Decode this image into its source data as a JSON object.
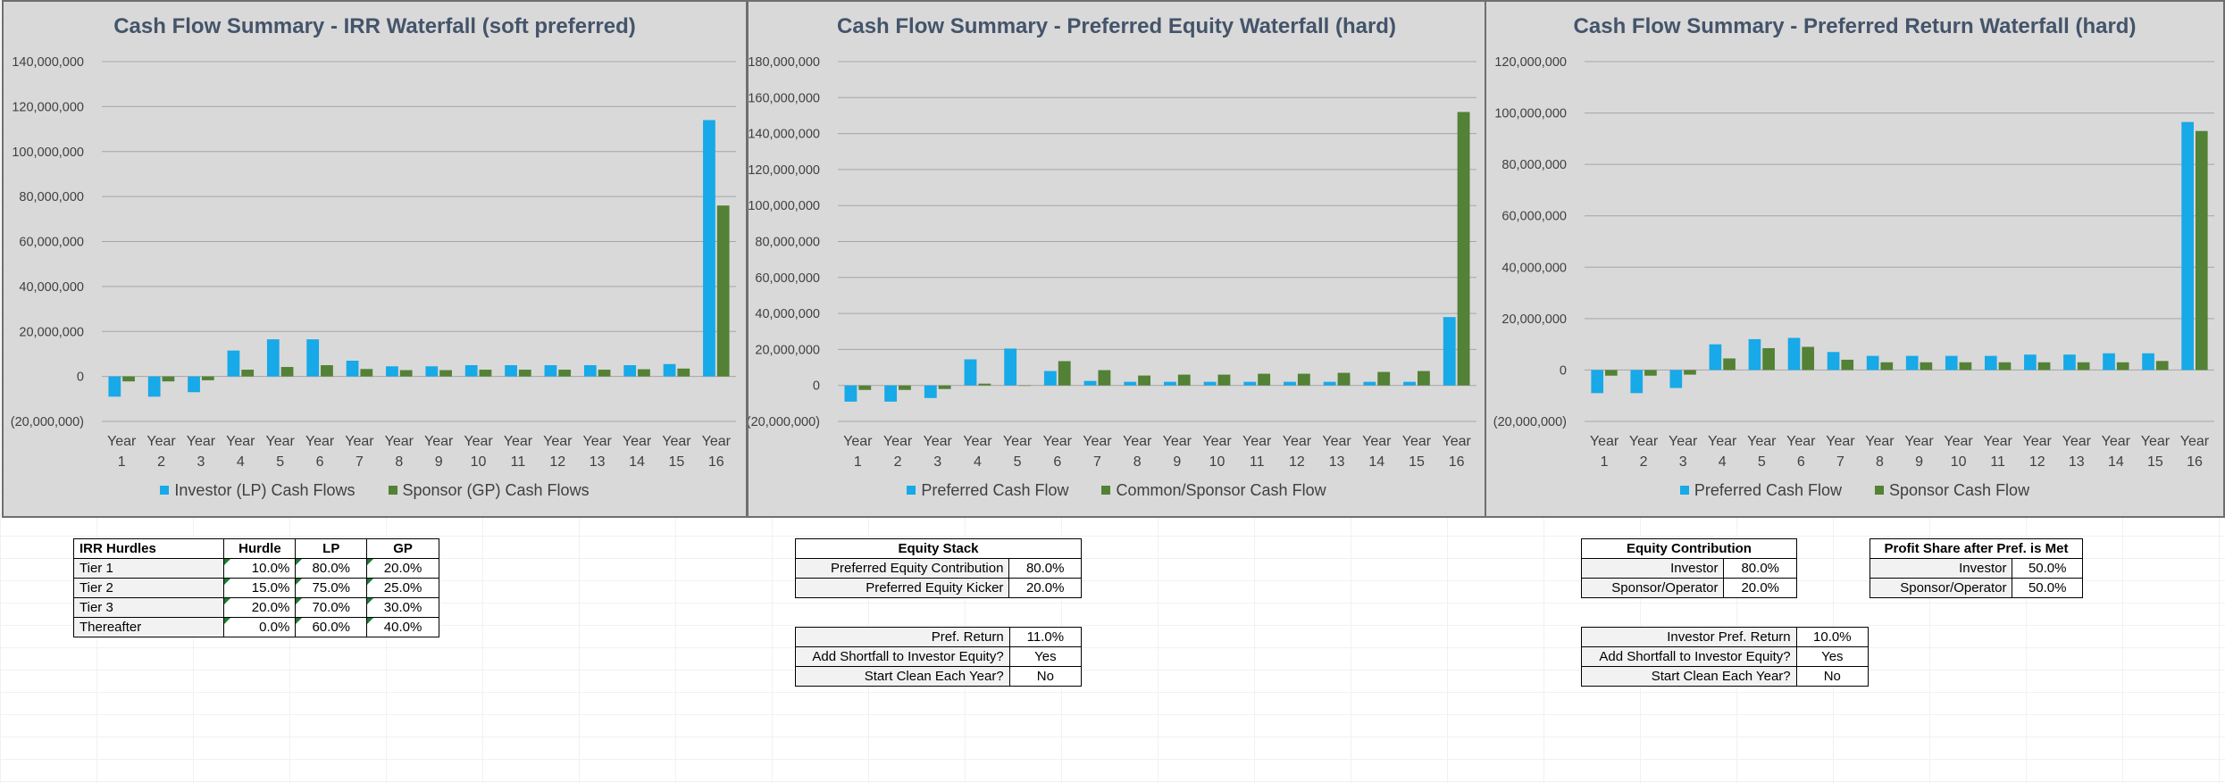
{
  "colors": {
    "blue": "#17a9e8",
    "green": "#538135",
    "chart_bg": "#d9d9d9",
    "title": "#44546a"
  },
  "chart_data": [
    {
      "type": "bar",
      "title": "Cash Flow Summary - IRR Waterfall (soft preferred)",
      "categories": [
        "Year 1",
        "Year 2",
        "Year 3",
        "Year 4",
        "Year 5",
        "Year 6",
        "Year 7",
        "Year 8",
        "Year 9",
        "Year 10",
        "Year 11",
        "Year 12",
        "Year 13",
        "Year 14",
        "Year 15",
        "Year 16"
      ],
      "yticks": [
        "140,000,000",
        "120,000,000",
        "100,000,000",
        "80,000,000",
        "60,000,000",
        "40,000,000",
        "20,000,000",
        "0",
        "(20,000,000)"
      ],
      "ylim": [
        -20000000,
        140000000
      ],
      "series": [
        {
          "name": "Investor (LP) Cash Flows",
          "color": "#17a9e8",
          "values": [
            -9000000,
            -9000000,
            -7000000,
            11500000,
            16500000,
            16500000,
            7000000,
            4500000,
            4500000,
            5000000,
            5000000,
            5000000,
            5000000,
            5000000,
            5500000,
            114000000
          ]
        },
        {
          "name": "Sponsor (GP) Cash Flows",
          "color": "#538135",
          "values": [
            -2200000,
            -2200000,
            -1700000,
            3000000,
            4200000,
            5000000,
            3300000,
            2800000,
            2800000,
            3000000,
            3000000,
            3000000,
            3000000,
            3200000,
            3500000,
            76000000
          ]
        }
      ]
    },
    {
      "type": "bar",
      "title": "Cash Flow Summary - Preferred Equity Waterfall (hard)",
      "categories": [
        "Year 1",
        "Year 2",
        "Year 3",
        "Year 4",
        "Year 5",
        "Year 6",
        "Year 7",
        "Year 8",
        "Year 9",
        "Year 10",
        "Year 11",
        "Year 12",
        "Year 13",
        "Year 14",
        "Year 15",
        "Year 16"
      ],
      "yticks": [
        "180,000,000",
        "160,000,000",
        "140,000,000",
        "120,000,000",
        "100,000,000",
        "80,000,000",
        "60,000,000",
        "40,000,000",
        "20,000,000",
        "0",
        "(20,000,000)"
      ],
      "ylim": [
        -20000000,
        180000000
      ],
      "series": [
        {
          "name": "Preferred Cash Flow",
          "color": "#17a9e8",
          "values": [
            -9000000,
            -9000000,
            -7000000,
            14500000,
            20500000,
            8000000,
            2500000,
            2000000,
            2000000,
            2000000,
            2000000,
            2000000,
            2000000,
            2000000,
            2000000,
            38000000
          ]
        },
        {
          "name": "Common/Sponsor Cash Flow",
          "color": "#538135",
          "values": [
            -2500000,
            -2500000,
            -2000000,
            1000000,
            0,
            13500000,
            8500000,
            5500000,
            6000000,
            6000000,
            6500000,
            6500000,
            7000000,
            7500000,
            8000000,
            152000000
          ]
        }
      ]
    },
    {
      "type": "bar",
      "title": "Cash Flow Summary - Preferred Return Waterfall (hard)",
      "categories": [
        "Year 1",
        "Year 2",
        "Year 3",
        "Year 4",
        "Year 5",
        "Year 6",
        "Year 7",
        "Year 8",
        "Year 9",
        "Year 10",
        "Year 11",
        "Year 12",
        "Year 13",
        "Year 14",
        "Year 15",
        "Year 16"
      ],
      "yticks": [
        "120,000,000",
        "100,000,000",
        "80,000,000",
        "60,000,000",
        "40,000,000",
        "20,000,000",
        "0",
        "(20,000,000)"
      ],
      "ylim": [
        -20000000,
        120000000
      ],
      "series": [
        {
          "name": "Preferred Cash Flow",
          "color": "#17a9e8",
          "values": [
            -9000000,
            -9000000,
            -7000000,
            10000000,
            12000000,
            12500000,
            7000000,
            5500000,
            5500000,
            5500000,
            5500000,
            6000000,
            6000000,
            6500000,
            6500000,
            96500000
          ]
        },
        {
          "name": "Sponsor Cash Flow",
          "color": "#538135",
          "values": [
            -2200000,
            -2200000,
            -1800000,
            4500000,
            8500000,
            9000000,
            4000000,
            3000000,
            3000000,
            3000000,
            3000000,
            3000000,
            3000000,
            3000000,
            3500000,
            93000000
          ]
        }
      ]
    }
  ],
  "irr_table": {
    "headers": [
      "IRR Hurdles",
      "Hurdle",
      "LP",
      "GP"
    ],
    "rows": [
      {
        "label": "Tier 1",
        "hurdle": "10.0%",
        "lp": "80.0%",
        "gp": "20.0%"
      },
      {
        "label": "Tier 2",
        "hurdle": "15.0%",
        "lp": "75.0%",
        "gp": "25.0%"
      },
      {
        "label": "Tier 3",
        "hurdle": "20.0%",
        "lp": "70.0%",
        "gp": "30.0%"
      },
      {
        "label": "Thereafter",
        "hurdle": "0.0%",
        "lp": "60.0%",
        "gp": "40.0%"
      }
    ]
  },
  "equity_stack": {
    "title": "Equity Stack",
    "rows": [
      {
        "label": "Preferred Equity Contribution",
        "value": "80.0%"
      },
      {
        "label": "Preferred Equity Kicker",
        "value": "20.0%"
      }
    ]
  },
  "pref_table_mid": {
    "rows": [
      {
        "label": "Pref. Return",
        "value": "11.0%"
      },
      {
        "label": "Add Shortfall to Investor Equity?",
        "value": "Yes"
      },
      {
        "label": "Start Clean Each Year?",
        "value": "No"
      }
    ]
  },
  "equity_contribution": {
    "title": "Equity Contribution",
    "rows": [
      {
        "label": "Investor",
        "value": "80.0%"
      },
      {
        "label": "Sponsor/Operator",
        "value": "20.0%"
      }
    ]
  },
  "profit_share": {
    "title": "Profit Share after Pref. is Met",
    "rows": [
      {
        "label": "Investor",
        "value": "50.0%"
      },
      {
        "label": "Sponsor/Operator",
        "value": "50.0%"
      }
    ]
  },
  "pref_table_right": {
    "rows": [
      {
        "label": "Investor Pref. Return",
        "value": "10.0%"
      },
      {
        "label": "Add Shortfall to Investor Equity?",
        "value": "Yes"
      },
      {
        "label": "Start Clean Each Year?",
        "value": "No"
      }
    ]
  }
}
